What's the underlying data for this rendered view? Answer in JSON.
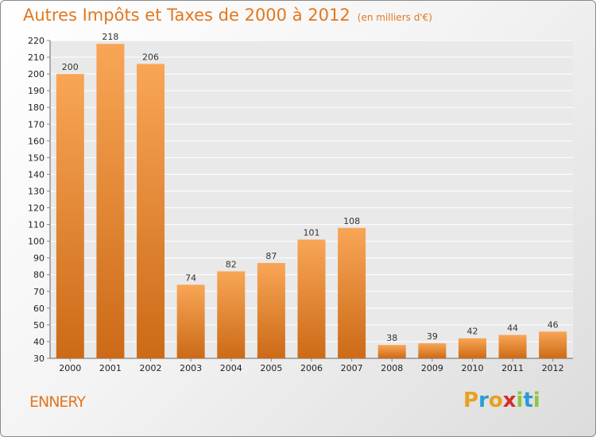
{
  "title": "Autres Impôts et Taxes de 2000 à 2012",
  "unit": "(en milliers d'€)",
  "commune": "ENNERY",
  "logo": {
    "text": "Proxiti",
    "letters": [
      "P",
      "r",
      "o",
      "x",
      "i",
      "t",
      "i"
    ],
    "colors": [
      "#e8a020",
      "#2a9bd6",
      "#e8a020",
      "#d0302a",
      "#8cc63f",
      "#2a9bd6",
      "#8cc63f"
    ]
  },
  "colors": {
    "bar_top": "#f8a656",
    "bar_bottom": "#cc6a17",
    "accent": "#e2771f"
  },
  "chart_data": {
    "type": "bar",
    "categories": [
      "2000",
      "2001",
      "2002",
      "2003",
      "2004",
      "2005",
      "2006",
      "2007",
      "2008",
      "2009",
      "2010",
      "2011",
      "2012"
    ],
    "values": [
      200,
      218,
      206,
      74,
      82,
      87,
      101,
      108,
      38,
      39,
      42,
      44,
      46
    ],
    "ylim": [
      30,
      220
    ],
    "yticks": [
      30,
      40,
      50,
      60,
      70,
      80,
      90,
      100,
      110,
      120,
      130,
      140,
      150,
      160,
      170,
      180,
      190,
      200,
      210,
      220
    ],
    "grid": true,
    "legend": "none",
    "xlabel": "",
    "ylabel": ""
  }
}
